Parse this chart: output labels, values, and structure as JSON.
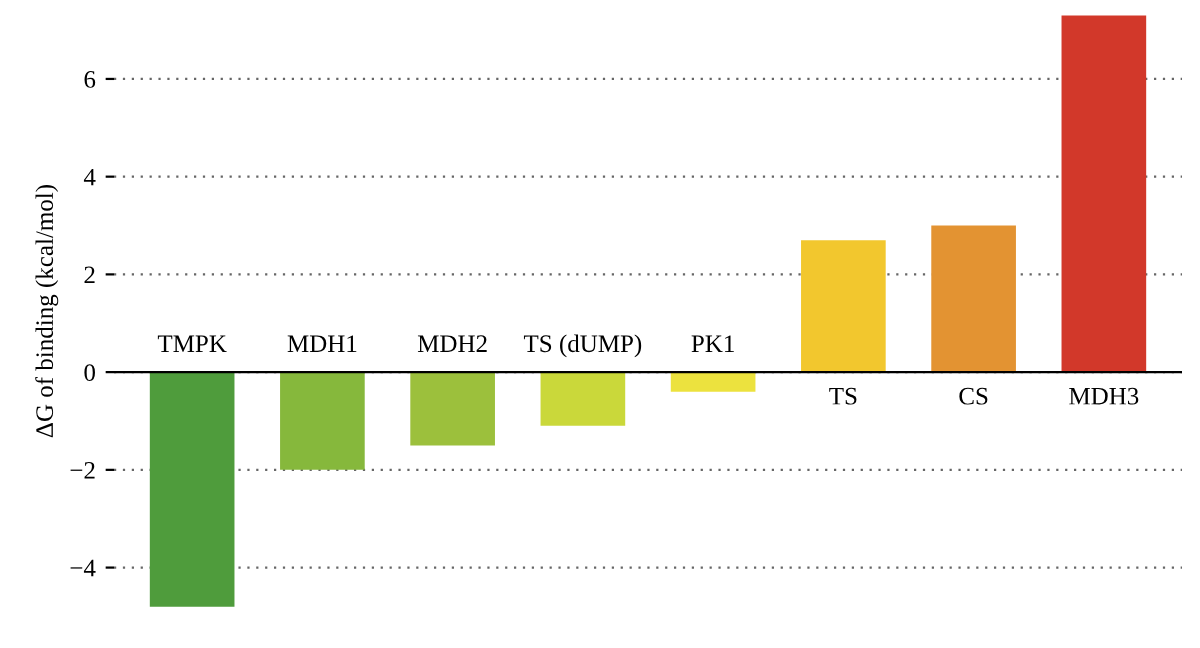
{
  "chart_data": {
    "type": "bar",
    "ylabel": "ΔG of binding (kcal/mol)",
    "categories": [
      "TMPK",
      "MDH1",
      "MDH2",
      "TS (dUMP)",
      "PK1",
      "TS",
      "CS",
      "MDH3"
    ],
    "values": [
      -4.8,
      -2.0,
      -1.5,
      -1.1,
      -0.4,
      2.7,
      3.0,
      7.3
    ],
    "colors": [
      "#4f9c3c",
      "#86b83c",
      "#9cc03c",
      "#cad83a",
      "#ece23e",
      "#f2c72e",
      "#e39332",
      "#d2382a"
    ],
    "ylim": [
      -4.85,
      7.35
    ],
    "yticks": [
      {
        "value": -4,
        "label": "−4"
      },
      {
        "value": -2,
        "label": "−2"
      },
      0,
      2,
      4,
      6
    ],
    "grid": "y"
  }
}
